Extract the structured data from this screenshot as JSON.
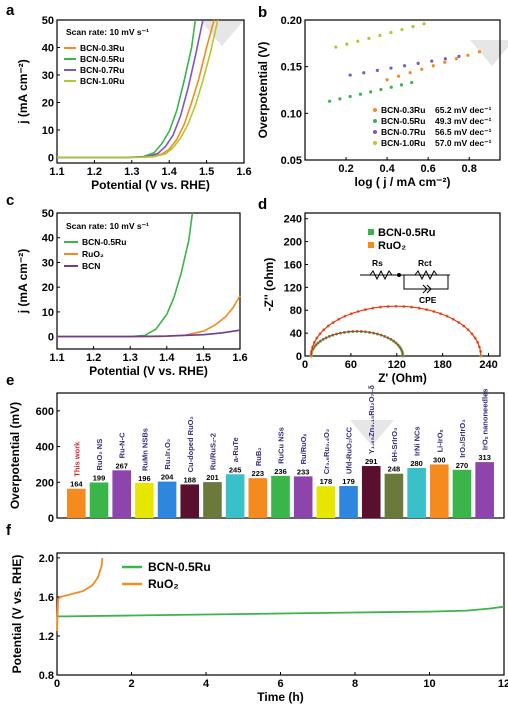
{
  "panels": [
    "a",
    "b",
    "c",
    "d",
    "e",
    "f"
  ],
  "chart_data": [
    {
      "id": "a",
      "type": "line",
      "xlabel": "Potential (V vs. RHE)",
      "ylabel": "j (mA cm⁻²)",
      "xlim": [
        1.1,
        1.6
      ],
      "ylim": [
        -2,
        50
      ],
      "xticks": [
        1.1,
        1.2,
        1.3,
        1.4,
        1.5,
        1.6
      ],
      "yticks": [
        0,
        10,
        20,
        30,
        40,
        50
      ],
      "annotation": "Scan rate: 10 mV s⁻¹",
      "series": [
        {
          "name": "BCN-0.3Ru",
          "color": "#f58a1f",
          "x": [
            1.1,
            1.3,
            1.35,
            1.38,
            1.4,
            1.42,
            1.44,
            1.46,
            1.48,
            1.5,
            1.52
          ],
          "y": [
            0,
            0,
            0.3,
            1.2,
            3,
            6.5,
            12,
            20,
            29,
            40,
            50
          ]
        },
        {
          "name": "BCN-0.5Ru",
          "color": "#39b54a",
          "x": [
            1.1,
            1.28,
            1.33,
            1.36,
            1.38,
            1.4,
            1.42,
            1.44,
            1.46,
            1.47
          ],
          "y": [
            0,
            0,
            0.3,
            1.8,
            5,
            9.5,
            17,
            28,
            40,
            50
          ]
        },
        {
          "name": "BCN-0.7Ru",
          "color": "#7e57c2",
          "x": [
            1.1,
            1.29,
            1.34,
            1.37,
            1.39,
            1.41,
            1.43,
            1.45,
            1.47,
            1.49
          ],
          "y": [
            0,
            0,
            0.3,
            1.5,
            4,
            8,
            15,
            25,
            37,
            50
          ]
        },
        {
          "name": "BCN-1.0Ru",
          "color": "#b5c72a",
          "x": [
            1.1,
            1.31,
            1.36,
            1.39,
            1.41,
            1.43,
            1.45,
            1.47,
            1.49,
            1.51,
            1.53
          ],
          "y": [
            0,
            0,
            0.3,
            1.3,
            3.5,
            7,
            12,
            19,
            28,
            38,
            50
          ]
        }
      ]
    },
    {
      "id": "b",
      "type": "scatter",
      "xlabel": "log ( j / mA cm⁻²)",
      "ylabel": "Overpotential (V)",
      "xlim": [
        0.0,
        0.95
      ],
      "ylim": [
        0.05,
        0.2
      ],
      "xticks": [
        0.2,
        0.4,
        0.6,
        0.8
      ],
      "yticks": [
        0.05,
        0.1,
        0.15,
        0.2
      ],
      "series": [
        {
          "name": "BCN-0.3Ru",
          "tafel": "65.2 mV dec⁻¹",
          "color": "#f58a1f",
          "x_start": 0.4,
          "x_end": 0.85,
          "y_start": 0.136,
          "y_end": 0.166
        },
        {
          "name": "BCN-0.5Ru",
          "tafel": "49.3 mV dec⁻¹",
          "color": "#39b54a",
          "x_start": 0.12,
          "x_end": 0.52,
          "y_start": 0.113,
          "y_end": 0.133
        },
        {
          "name": "BCN-0.7Ru",
          "tafel": "56.5 mV dec⁻¹",
          "color": "#7e57c2",
          "x_start": 0.22,
          "x_end": 0.75,
          "y_start": 0.141,
          "y_end": 0.161
        },
        {
          "name": "BCN-1.0Ru",
          "tafel": "57.0 mV dec⁻¹",
          "color": "#b5c72a",
          "x_start": 0.15,
          "x_end": 0.58,
          "y_start": 0.171,
          "y_end": 0.196
        }
      ]
    },
    {
      "id": "c",
      "type": "line",
      "xlabel": "Potential (V vs. RHE)",
      "ylabel": "j (mA cm⁻²)",
      "xlim": [
        1.1,
        1.6
      ],
      "ylim": [
        -5,
        50
      ],
      "xticks": [
        1.1,
        1.2,
        1.3,
        1.4,
        1.5,
        1.6
      ],
      "yticks": [
        0,
        10,
        20,
        30,
        40,
        50
      ],
      "annotation": "Scan rate: 10 mV s⁻¹",
      "series": [
        {
          "name": "BCN-0.5Ru",
          "color": "#39b54a",
          "x": [
            1.1,
            1.3,
            1.34,
            1.37,
            1.4,
            1.42,
            1.44,
            1.46,
            1.47
          ],
          "y": [
            0,
            0,
            0.5,
            3,
            9,
            16,
            26,
            39,
            50
          ]
        },
        {
          "name": "RuO₂",
          "color": "#f58a1f",
          "x": [
            1.1,
            1.38,
            1.45,
            1.5,
            1.53,
            1.56,
            1.58,
            1.6
          ],
          "y": [
            0,
            0,
            0.6,
            2.2,
            4.5,
            8,
            11.5,
            16.5
          ]
        },
        {
          "name": "BCN",
          "color": "#6a3d9a",
          "x": [
            1.1,
            1.3,
            1.4,
            1.5,
            1.55,
            1.6
          ],
          "y": [
            0,
            0,
            0.2,
            0.8,
            1.5,
            2.6
          ]
        }
      ]
    },
    {
      "id": "d",
      "type": "scatter",
      "xlabel": "Z' (Ohm)",
      "ylabel": "-Z'' (ohm)",
      "xlim": [
        0,
        255
      ],
      "ylim": [
        0,
        250
      ],
      "xticks": [
        0,
        60,
        120,
        180,
        240
      ],
      "yticks": [
        0,
        40,
        80,
        120,
        160,
        200,
        240
      ],
      "circuit_labels": {
        "rs": "Rs",
        "rct": "Rct",
        "cpe": "CPE"
      },
      "series": [
        {
          "name": "BCN-0.5Ru",
          "color": "#39b54a",
          "x_start": 8,
          "x_end": 128,
          "peak": 43
        },
        {
          "name": "RuO₂",
          "color": "#f58a1f",
          "x_start": 8,
          "x_end": 230,
          "peak": 87
        }
      ]
    },
    {
      "id": "e",
      "type": "bar",
      "ylabel": "Overpotential (mV)",
      "ylim": [
        0,
        700
      ],
      "yticks": [
        0,
        200,
        400,
        600
      ],
      "categories": [
        "This work",
        "RuO₂ NS",
        "Ru-N-C",
        "RuMn NSBs",
        "Ru₃Ir₁O₂",
        "Cu-doped RuO₂",
        "Ru/RuS₂-2",
        "a-RuTe",
        "RuB₂",
        "RuCu NSs",
        "Ru/RuOₓ",
        "Cr₀.₆Ru₀.₄O₂",
        "Ufd-RuO₂/CC",
        "Y₁.₈₅Zn₀.₁₅Ru₂O₇₋δ",
        "6H-SrIrO₃",
        "IrNi NCs",
        "Li-IrOₓ",
        "IrO₂/SrIrO₃",
        "IrOₓ nanoneedles"
      ],
      "values": [
        164,
        199,
        267,
        196,
        204,
        188,
        201,
        245,
        223,
        236,
        233,
        178,
        179,
        291,
        248,
        280,
        300,
        270,
        313
      ],
      "colors": [
        "#f58a1f",
        "#39b54a",
        "#8e44ad",
        "#e6e600",
        "#2e86de",
        "#5b0f2f",
        "#6b7a3a",
        "#3ac0c8",
        "#f58a1f",
        "#39b54a",
        "#8e44ad",
        "#e6e600",
        "#2e86de",
        "#5b0f2f",
        "#6b7a3a",
        "#3ac0c8",
        "#f58a1f",
        "#39b54a",
        "#8e44ad"
      ]
    },
    {
      "id": "f",
      "type": "line",
      "xlabel": "Time (h)",
      "ylabel": "Potential (V vs. RHE)",
      "xlim": [
        0,
        12
      ],
      "ylim": [
        0.8,
        2.05
      ],
      "xticks": [
        0,
        2,
        4,
        6,
        8,
        10,
        12
      ],
      "yticks": [
        0.8,
        1.2,
        1.6,
        2.0
      ],
      "series": [
        {
          "name": "BCN-0.5Ru",
          "color": "#39b54a",
          "x": [
            0,
            0.2,
            2,
            4,
            6,
            8,
            10,
            11,
            11.6,
            12
          ],
          "y": [
            1.4,
            1.4,
            1.41,
            1.42,
            1.43,
            1.44,
            1.45,
            1.46,
            1.48,
            1.5
          ]
        },
        {
          "name": "RuO₂",
          "color": "#f58a1f",
          "x": [
            0,
            0.03,
            0.1,
            0.4,
            0.7,
            0.95,
            1.1,
            1.2,
            1.22
          ],
          "y": [
            1.25,
            1.58,
            1.6,
            1.63,
            1.66,
            1.72,
            1.8,
            1.92,
            2.0
          ]
        }
      ]
    }
  ]
}
